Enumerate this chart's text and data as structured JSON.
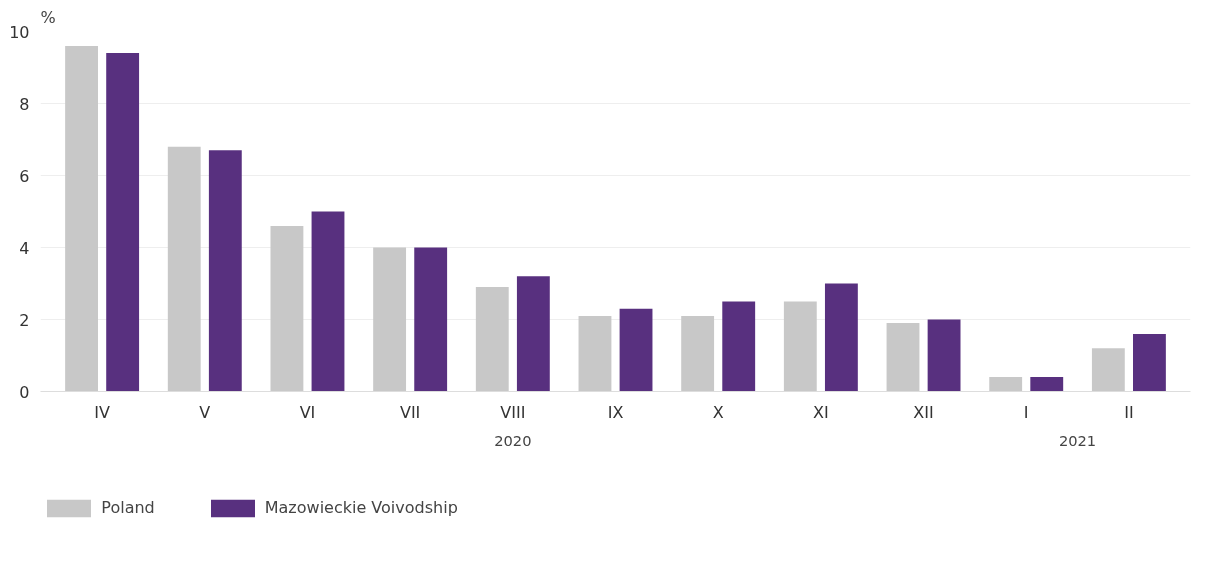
{
  "chart_data": {
    "type": "bar",
    "ylabel": "%",
    "categories": [
      "IV",
      "V",
      "VI",
      "VII",
      "VIII",
      "IX",
      "X",
      "XI",
      "XII",
      "I",
      "II"
    ],
    "series": [
      {
        "name": "Poland",
        "color": "#c8c8c8",
        "values": [
          9.6,
          6.8,
          4.6,
          4.0,
          2.9,
          2.1,
          2.1,
          2.5,
          1.9,
          0.4,
          1.2
        ]
      },
      {
        "name": "Mazowieckie Voivodship",
        "color": "#58307f",
        "values": [
          9.4,
          6.7,
          5.0,
          4.0,
          3.2,
          2.3,
          2.5,
          3.0,
          2.0,
          0.4,
          1.6
        ]
      }
    ],
    "ylim": [
      0,
      10
    ],
    "yticks": [
      0,
      2,
      4,
      6,
      8,
      10
    ],
    "grid": "y",
    "legend": "bottom left",
    "annotations": [
      "2020",
      "2021"
    ]
  }
}
